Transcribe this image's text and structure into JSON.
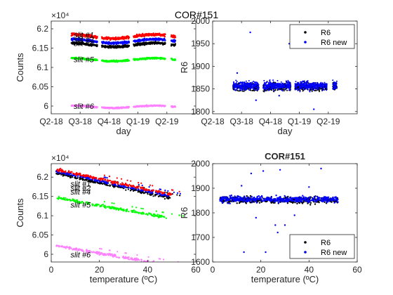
{
  "figure_title": "COR#151",
  "colors": {
    "black": "#000000",
    "blue": "#0000ff",
    "red": "#ff0000",
    "green": "#00ff00",
    "pink": "#ff80ff"
  },
  "chart_data": [
    {
      "id": "tl",
      "type": "scatter",
      "xlabel": "day",
      "ylabel": "Counts",
      "exponent": "×10⁴",
      "xlim": [
        0,
        5
      ],
      "ylim": [
        5.98,
        6.22
      ],
      "xticks": [
        0,
        1,
        2,
        3,
        4
      ],
      "xtick_labels": [
        "Q2-18",
        "Q3-18",
        "Q4-18",
        "Q1-19",
        "Q2-19"
      ],
      "yticks": [
        6,
        6.05,
        6.1,
        6.15,
        6.2
      ],
      "ytick_labels": [
        "6",
        "6.05",
        "6.1",
        "6.15",
        "6.2"
      ],
      "segments": [
        [
          0.7,
          1.6
        ],
        [
          1.75,
          2.7
        ],
        [
          2.85,
          3.95
        ],
        [
          4.15,
          4.3
        ]
      ],
      "series": [
        {
          "color": "#ff80ff",
          "level": 5.998,
          "spread": 0.003,
          "trend": 0.003
        },
        {
          "color": "#00ff00",
          "level": 6.12,
          "spread": 0.004,
          "trend": 0.004
        },
        {
          "color": "#000000",
          "level": 6.158,
          "spread": 0.006,
          "trend": 0.005
        },
        {
          "color": "#0000ff",
          "level": 6.168,
          "spread": 0.006,
          "trend": 0.005
        },
        {
          "color": "#ff0000",
          "level": 6.18,
          "spread": 0.007,
          "trend": 0.005
        }
      ],
      "annotations": [
        {
          "text": "slit #1",
          "x": 0.78,
          "y": 6.185
        },
        {
          "text": "slit #2",
          "x": 0.78,
          "y": 6.173
        },
        {
          "text": "slit #4",
          "x": 0.78,
          "y": 6.163
        },
        {
          "text": "slit #5",
          "x": 0.78,
          "y": 6.121
        },
        {
          "text": "slit #6",
          "x": 0.78,
          "y": 6.0
        }
      ]
    },
    {
      "id": "tr",
      "type": "scatter",
      "xlabel": "day",
      "ylabel": "R6",
      "xlim": [
        0,
        5
      ],
      "ylim": [
        1795,
        2000
      ],
      "xticks": [
        0,
        1,
        2,
        3,
        4
      ],
      "xtick_labels": [
        "Q2-18",
        "Q3-18",
        "Q4-18",
        "Q1-19",
        "Q2-19"
      ],
      "yticks": [
        1800,
        1850,
        1900,
        1950,
        2000
      ],
      "ytick_labels": [
        "1800",
        "1850",
        "1900",
        "1950",
        "2000"
      ],
      "segments": [
        [
          0.7,
          1.6
        ],
        [
          1.75,
          2.7
        ],
        [
          2.85,
          3.95
        ],
        [
          4.15,
          4.3
        ]
      ],
      "series": [
        {
          "name": "R6",
          "color": "#000000",
          "level": 1855,
          "spread": 10
        },
        {
          "name": "R6 new",
          "color": "#0000ff",
          "level": 1857,
          "spread": 10
        }
      ],
      "outliers": [
        [
          1.3,
          1975
        ],
        [
          2.65,
          1950
        ],
        [
          0.85,
          1885
        ],
        [
          3.5,
          1805
        ],
        [
          2.3,
          1835
        ],
        [
          1.5,
          1825
        ]
      ],
      "legend": "top-right"
    },
    {
      "id": "bl",
      "type": "scatter",
      "xlabel": "temperature (ºC)",
      "ylabel": "Counts",
      "exponent": "×10⁴",
      "xlim": [
        0,
        60
      ],
      "ylim": [
        5.98,
        6.235
      ],
      "xticks": [
        0,
        20,
        40,
        60
      ],
      "xtick_labels": [
        "0",
        "20",
        "40",
        "60"
      ],
      "yticks": [
        6,
        6.05,
        6.1,
        6.15,
        6.2
      ],
      "ytick_labels": [
        "6",
        "6.05",
        "6.1",
        "6.15",
        "6.2"
      ],
      "series": [
        {
          "color": "#000000",
          "x": [
            2,
            50
          ],
          "y": [
            6.21,
            6.145
          ]
        },
        {
          "color": "#0000ff",
          "x": [
            2,
            50
          ],
          "y": [
            6.215,
            6.15
          ]
        },
        {
          "color": "#ff0000",
          "x": [
            2,
            50
          ],
          "y": [
            6.22,
            6.155
          ]
        },
        {
          "color": "#00ff00",
          "x": [
            2,
            48
          ],
          "y": [
            6.147,
            6.095
          ]
        },
        {
          "color": "#ff80ff",
          "x": [
            2,
            46
          ],
          "y": [
            6.022,
            5.975
          ]
        }
      ],
      "annotations": [
        {
          "text": "slit #1",
          "x": 8,
          "y": 6.183
        },
        {
          "text": "slit #2",
          "x": 8,
          "y": 6.172
        },
        {
          "text": "slit #4",
          "x": 8,
          "y": 6.162
        },
        {
          "text": "slit #5",
          "x": 8,
          "y": 6.128
        },
        {
          "text": "slit #6",
          "x": 8,
          "y": 5.999
        }
      ]
    },
    {
      "id": "br",
      "type": "scatter",
      "title": "COR#151",
      "xlabel": "temperature (ºC)",
      "ylabel": "R6",
      "xlim": [
        0,
        60
      ],
      "ylim": [
        1600,
        2000
      ],
      "xticks": [
        0,
        20,
        40,
        60
      ],
      "xtick_labels": [
        "0",
        "20",
        "40",
        "60"
      ],
      "yticks": [
        1600,
        1700,
        1800,
        1900,
        2000
      ],
      "ytick_labels": [
        "1600",
        "1700",
        "1800",
        "1900",
        "2000"
      ],
      "series": [
        {
          "name": "R6",
          "color": "#000000",
          "level": 1852,
          "spread": 10,
          "x": [
            3,
            52
          ]
        },
        {
          "name": "R6 new",
          "color": "#0000ff",
          "level": 1855,
          "spread": 10,
          "x": [
            3,
            52
          ]
        }
      ],
      "outliers": [
        [
          13,
          1640
        ],
        [
          22,
          1640
        ],
        [
          26,
          1750
        ],
        [
          30,
          1750
        ],
        [
          21,
          1970
        ],
        [
          28,
          1975
        ],
        [
          45,
          1980
        ],
        [
          16,
          1960
        ],
        [
          34,
          1790
        ],
        [
          18,
          1780
        ],
        [
          12,
          1910
        ],
        [
          40,
          1905
        ],
        [
          27,
          1720
        ]
      ],
      "legend": "bottom-right"
    }
  ]
}
